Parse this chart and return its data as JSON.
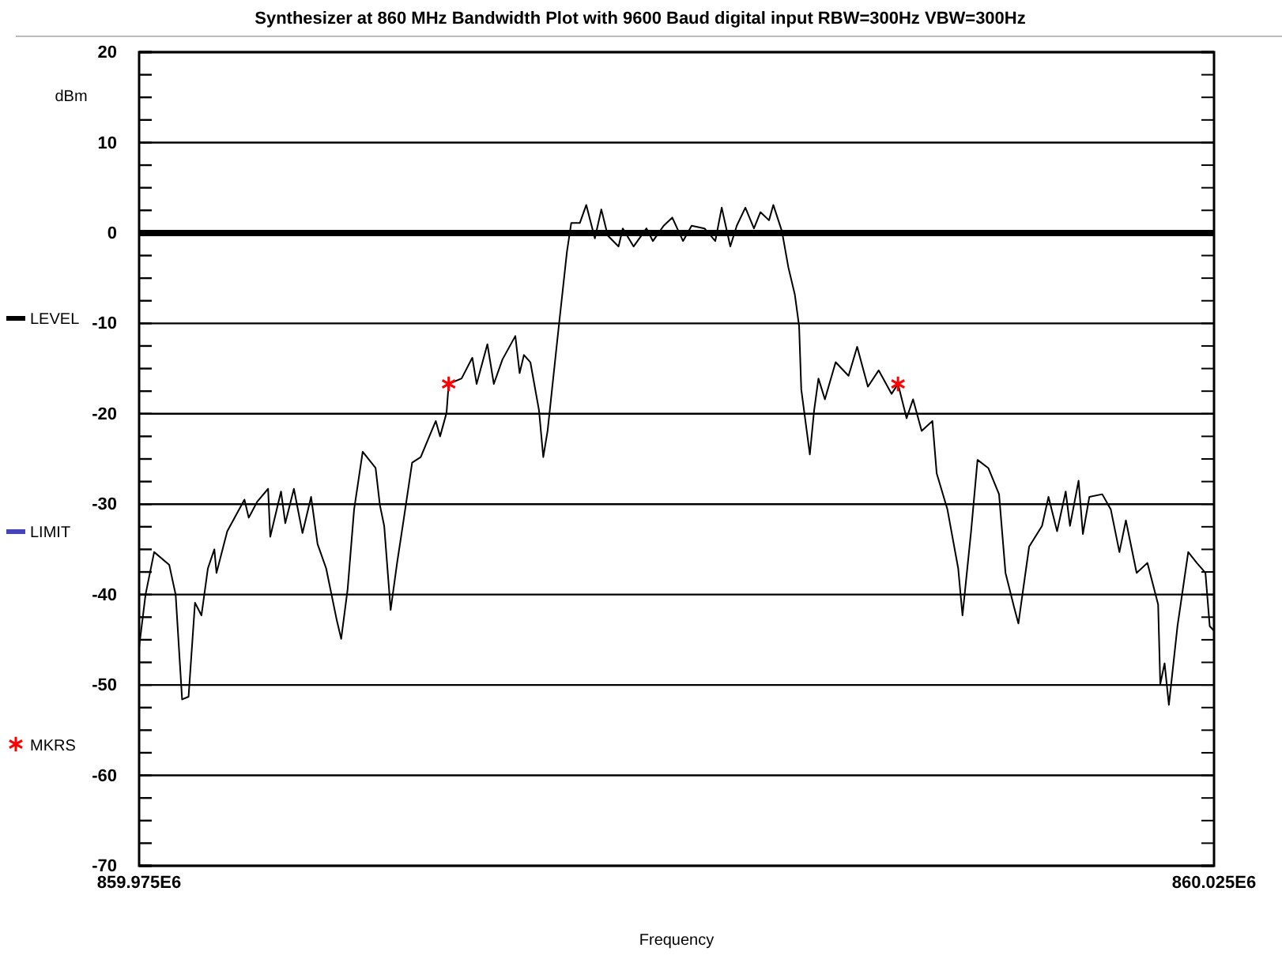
{
  "chart_data": {
    "type": "line",
    "title": "Synthesizer at 860 MHz  Bandwidth Plot  with 9600 Baud digital input RBW=300Hz VBW=300Hz",
    "xlabel": "Frequency",
    "ylabel": "dBm",
    "xlim": [
      859975000,
      860025000
    ],
    "xticks": [
      {
        "value": 859975000,
        "label": "859.975E6"
      },
      {
        "value": 860025000,
        "label": "860.025E6"
      }
    ],
    "ylim": [
      -70,
      20
    ],
    "yticks": [
      -70,
      {
        "value": -67.5,
        "label": null
      },
      {
        "value": -65,
        "label": null
      },
      {
        "value": -62.5,
        "label": null
      },
      -60,
      {
        "value": -57.5,
        "label": null
      },
      {
        "value": -55,
        "label": null
      },
      {
        "value": -52.5,
        "label": null
      },
      -50,
      {
        "value": -47.5,
        "label": null
      },
      {
        "value": -45,
        "label": null
      },
      {
        "value": -42.5,
        "label": null
      },
      -40,
      {
        "value": -37.5,
        "label": null
      },
      {
        "value": -35,
        "label": null
      },
      {
        "value": -32.5,
        "label": null
      },
      -30,
      {
        "value": -27.5,
        "label": null
      },
      {
        "value": -25,
        "label": null
      },
      {
        "value": -22.5,
        "label": null
      },
      -20,
      {
        "value": -17.5,
        "label": null
      },
      {
        "value": -15,
        "label": null
      },
      {
        "value": -12.5,
        "label": null
      },
      -10,
      {
        "value": -7.5,
        "label": null
      },
      {
        "value": -5,
        "label": null
      },
      {
        "value": -2.5,
        "label": null
      },
      0,
      {
        "value": 2.5,
        "label": null
      },
      {
        "value": 5,
        "label": null
      },
      {
        "value": 7.5,
        "label": null
      },
      10,
      {
        "value": 12.5,
        "label": null
      },
      {
        "value": 15,
        "label": null
      },
      {
        "value": 17.5,
        "label": null
      },
      20
    ],
    "grid": "y",
    "legend": "left",
    "ref_lines": [
      {
        "axis": "y",
        "value": 0,
        "color": "#000000"
      }
    ],
    "series": [
      {
        "name": "LEVEL",
        "type": "line",
        "color": "#000000",
        "x": [
          859975000,
          859975300,
          859975700,
          859976400,
          859976700,
          859977000,
          859977300,
          859977600,
          859977900,
          859978200,
          859978500,
          859978600,
          859979100,
          859979900,
          859980100,
          859980500,
          859981000,
          859981100,
          859981600,
          859981800,
          859982200,
          859982600,
          859983000,
          859983300,
          859983700,
          859984200,
          859984400,
          859984700,
          859985000,
          859985400,
          859986000,
          859986200,
          859986400,
          859986700,
          859987000,
          859987300,
          859987700,
          859988100,
          859988500,
          859988800,
          859989000,
          859989300,
          859989400,
          859990000,
          859990500,
          859990700,
          859991200,
          859991500,
          859991900,
          859992500,
          859992700,
          859992900,
          859993200,
          859993600,
          859993800,
          859994000,
          859994500,
          859994900,
          859995100,
          859995500,
          859995800,
          859996200,
          859996500,
          859996800,
          859997300,
          859997500,
          859998000,
          859998600,
          859998900,
          859999400,
          859999800,
          860000300,
          860000700,
          860001300,
          860001800,
          860002100,
          860002500,
          860002800,
          860003200,
          860003600,
          860003900,
          860004300,
          860004500,
          860004900,
          860005200,
          860005500,
          860005700,
          860005800,
          860006200,
          860006400,
          860006600,
          860006900,
          860007400,
          860008000,
          860008400,
          860008900,
          860009400,
          860010000,
          860010300,
          860010700,
          860011000,
          860011400,
          860011900,
          860012100,
          860012600,
          860013100,
          860013300,
          860013700,
          860014000,
          860014500,
          860015000,
          860015300,
          860015700,
          860015900,
          860016400,
          860017000,
          860017300,
          860017700,
          860018100,
          860018300,
          860018700,
          860018900,
          860019200,
          860019800,
          860020200,
          860020600,
          860020900,
          860021400,
          860021900,
          860022400,
          860022500,
          860022700,
          860022900,
          860023300,
          860023800,
          860024200,
          860024600,
          860024800,
          860025000
        ],
        "values": [
          -45.8,
          -40,
          -35.3,
          -36.7,
          -40,
          -51.6,
          -51.3,
          -40.9,
          -42.3,
          -37.1,
          -35,
          -37.6,
          -33,
          -29.5,
          -31.5,
          -29.7,
          -28.3,
          -33.6,
          -28.6,
          -32.1,
          -28.3,
          -33.2,
          -29.2,
          -34.4,
          -37.1,
          -42.9,
          -44.9,
          -39.4,
          -30.6,
          -24.2,
          -26,
          -30.1,
          -32.4,
          -41.7,
          -36.5,
          -31.8,
          -25.4,
          -24.8,
          -22.5,
          -20.8,
          -22.5,
          -19.9,
          -16.7,
          -16.1,
          -13.8,
          -16.7,
          -12.3,
          -16.7,
          -14,
          -11.4,
          -15.5,
          -13.5,
          -14.3,
          -19.6,
          -24.8,
          -21.9,
          -10.8,
          -2.1,
          1.1,
          1.1,
          3.1,
          -0.6,
          2.6,
          -0.3,
          -1.5,
          0.5,
          -1.5,
          0.5,
          -0.9,
          0.8,
          1.7,
          -0.9,
          0.8,
          0.5,
          -0.9,
          2.8,
          -1.5,
          0.8,
          2.8,
          0.5,
          2.3,
          1.4,
          3.1,
          0.2,
          -3.8,
          -6.8,
          -10.3,
          -17.3,
          -24.5,
          -19.6,
          -16.1,
          -18.4,
          -14.3,
          -15.8,
          -12.6,
          -17,
          -15.2,
          -17.8,
          -16.7,
          -20.5,
          -18.4,
          -21.9,
          -20.8,
          -26.6,
          -30.6,
          -37.1,
          -42.3,
          -33,
          -25.1,
          -26,
          -28.9,
          -37.6,
          -41.4,
          -43.2,
          -34.7,
          -32.4,
          -29.2,
          -33,
          -28.6,
          -32.4,
          -27.4,
          -33.3,
          -29.2,
          -28.9,
          -30.6,
          -35.3,
          -31.8,
          -37.6,
          -36.5,
          -41.1,
          -49.9,
          -47.6,
          -52.2,
          -43.5,
          -35.3,
          -36.5,
          -37.6,
          -43.5,
          -44
        ]
      },
      {
        "name": "LIMIT",
        "type": "line",
        "color": "#4444bb"
      },
      {
        "name": "MKRS",
        "type": "scatter",
        "marker": "cross",
        "color": "#ff0000",
        "x": [
          859989400,
          860010300
        ],
        "values": [
          -16.7,
          -16.7
        ]
      }
    ]
  }
}
